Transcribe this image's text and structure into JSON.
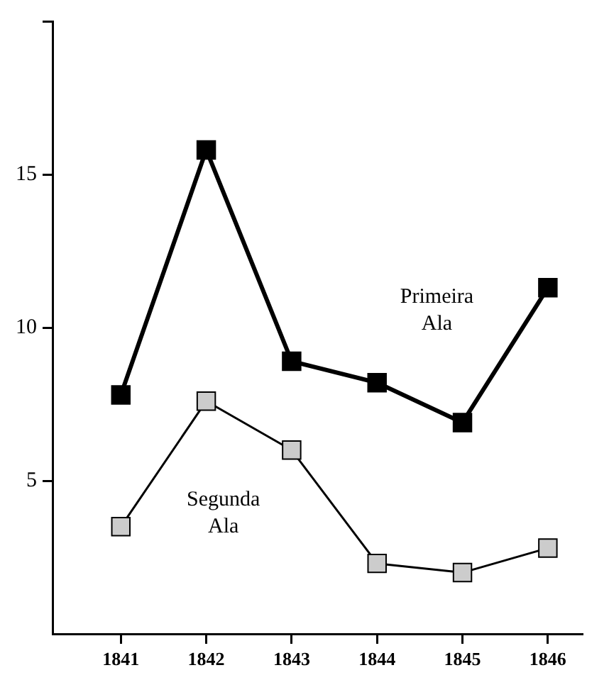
{
  "chart_data": {
    "type": "line",
    "x": [
      1841,
      1842,
      1843,
      1844,
      1845,
      1846
    ],
    "xlim": [
      1840.2,
      1846.4
    ],
    "xticks": [
      1841,
      1842,
      1843,
      1844,
      1845,
      1846
    ],
    "ylim": [
      0,
      20
    ],
    "yticks": [
      5,
      10,
      15,
      {
        "value": 20,
        "label": null
      }
    ],
    "grid": false,
    "legend": false,
    "marker": "square",
    "line_style": "solid",
    "series": [
      {
        "name": "Primeira Ala",
        "color": "#000000",
        "values": [
          7.8,
          15.8,
          8.9,
          8.2,
          6.9,
          11.3
        ]
      },
      {
        "name": "Segunda Ala",
        "color": "#cccccc",
        "values": [
          3.5,
          7.6,
          6.0,
          2.3,
          2.0,
          2.8
        ]
      }
    ]
  }
}
